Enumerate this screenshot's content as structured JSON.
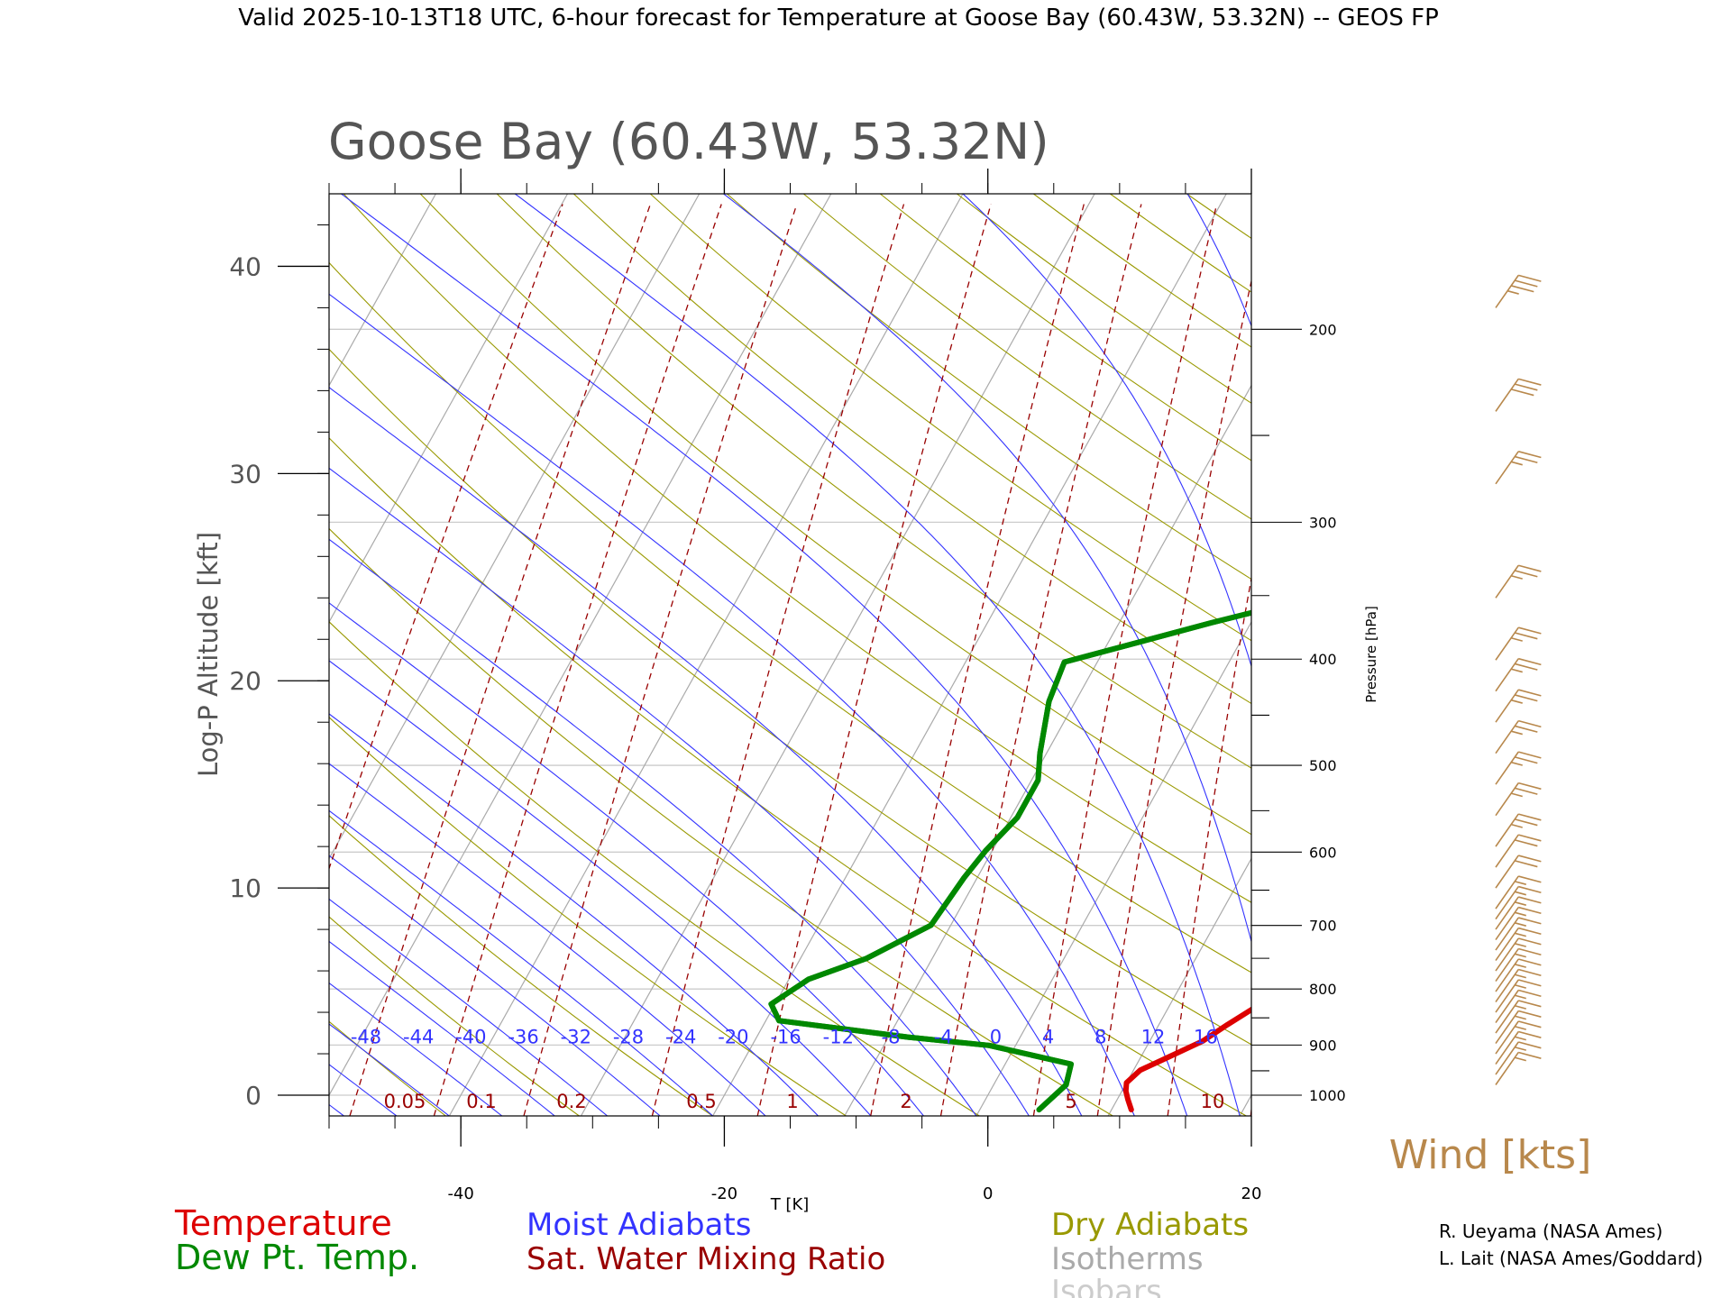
{
  "header": {
    "title": "Valid 2025-10-13T18 UTC, 6-hour forecast for Temperature at Goose Bay (60.43W, 53.32N) -- GEOS FP"
  },
  "chart_data": {
    "type": "line",
    "title": "Goose Bay (60.43W, 53.32N)",
    "xlabel": "T [K]",
    "ylabel": "Log-P Altitude [kft]",
    "y2label": "Pressure [hPa]",
    "xlim": [
      -50,
      20
    ],
    "ylim": [
      -1,
      43.5
    ],
    "x_ticks": [
      "-40",
      "-20",
      "0",
      "20"
    ],
    "y_ticks": [
      "0",
      "10",
      "20",
      "30",
      "40"
    ],
    "pressure_ticks": [
      "1000",
      "900",
      "800",
      "700",
      "600",
      "500",
      "400",
      "300",
      "200"
    ],
    "moist_adiabat_labels": [
      "-48",
      "-44",
      "-40",
      "-36",
      "-32",
      "-28",
      "-24",
      "-20",
      "-16",
      "-12",
      "-8",
      "-4",
      "0",
      "4",
      "8",
      "12",
      "16"
    ],
    "mixing_ratio_labels": [
      "0.05",
      "0.1",
      "0.2",
      "0.5",
      "1",
      "2",
      "5",
      "10"
    ],
    "series": [
      {
        "name": "Temperature",
        "color": "#dd0000",
        "points": [
          [
            11.5,
            -0.7
          ],
          [
            10.8,
            -0.2
          ],
          [
            10.3,
            0.2
          ],
          [
            10.0,
            0.6
          ],
          [
            10.5,
            1.2
          ],
          [
            12.0,
            1.8
          ],
          [
            14.0,
            2.6
          ],
          [
            15.2,
            3.4
          ],
          [
            16.5,
            4.2
          ],
          [
            17.0,
            5.0
          ],
          [
            17.5,
            6.0
          ],
          [
            17.2,
            7.0
          ],
          [
            16.0,
            8.2
          ],
          [
            15.0,
            10.0
          ],
          [
            14.3,
            11.8
          ],
          [
            13.7,
            13.5
          ],
          [
            12.5,
            15.5
          ],
          [
            11.0,
            17.6
          ],
          [
            10.0,
            19.0
          ],
          [
            9.5,
            21.0
          ],
          [
            8.5,
            23.5
          ],
          [
            7.0,
            27.0
          ],
          [
            5.0,
            28.5
          ],
          [
            0.0,
            34.0
          ],
          [
            -1.2,
            37.0
          ],
          [
            2.0,
            39.5
          ],
          [
            7.0,
            43.5
          ]
        ]
      },
      {
        "name": "Dew Pt. Temp.",
        "color": "#008800",
        "points": [
          [
            4.5,
            -0.7
          ],
          [
            5.5,
            0.5
          ],
          [
            5.0,
            1.5
          ],
          [
            -2.0,
            2.4
          ],
          [
            -8.5,
            2.8
          ],
          [
            -19.0,
            3.6
          ],
          [
            -20.3,
            4.4
          ],
          [
            -18.5,
            5.6
          ],
          [
            -15.0,
            6.6
          ],
          [
            -11.5,
            8.2
          ],
          [
            -11.0,
            10.5
          ],
          [
            -10.5,
            11.8
          ],
          [
            -9.5,
            13.4
          ],
          [
            -9.5,
            15.2
          ],
          [
            -10.5,
            16.5
          ],
          [
            -12.0,
            19.0
          ],
          [
            -12.5,
            20.9
          ],
          [
            -3.0,
            22.8
          ],
          [
            3.5,
            24.0
          ],
          [
            6.5,
            27.4
          ],
          [
            2.0,
            33.0
          ],
          [
            -1.2,
            37.0
          ],
          [
            -0.5,
            39.0
          ],
          [
            0.0,
            42.0
          ],
          [
            0.3,
            43.5
          ]
        ]
      }
    ],
    "wind_barbs_kts": [
      {
        "alt": 0.5,
        "speed": 15
      },
      {
        "alt": 1.0,
        "speed": 15
      },
      {
        "alt": 1.5,
        "speed": 15
      },
      {
        "alt": 2.0,
        "speed": 15
      },
      {
        "alt": 2.5,
        "speed": 15
      },
      {
        "alt": 3.0,
        "speed": 15
      },
      {
        "alt": 3.5,
        "speed": 15
      },
      {
        "alt": 4.0,
        "speed": 15
      },
      {
        "alt": 4.5,
        "speed": 15
      },
      {
        "alt": 5.0,
        "speed": 15
      },
      {
        "alt": 5.5,
        "speed": 15
      },
      {
        "alt": 6.0,
        "speed": 15
      },
      {
        "alt": 6.5,
        "speed": 15
      },
      {
        "alt": 7.0,
        "speed": 15
      },
      {
        "alt": 7.5,
        "speed": 15
      },
      {
        "alt": 8.0,
        "speed": 15
      },
      {
        "alt": 8.5,
        "speed": 15
      },
      {
        "alt": 9.0,
        "speed": 15
      },
      {
        "alt": 10.0,
        "speed": 20
      },
      {
        "alt": 11.0,
        "speed": 20
      },
      {
        "alt": 12.0,
        "speed": 25
      },
      {
        "alt": 13.5,
        "speed": 25
      },
      {
        "alt": 15.0,
        "speed": 25
      },
      {
        "alt": 16.5,
        "speed": 25
      },
      {
        "alt": 18.0,
        "speed": 25
      },
      {
        "alt": 19.5,
        "speed": 25
      },
      {
        "alt": 21.0,
        "speed": 25
      },
      {
        "alt": 24.0,
        "speed": 25
      },
      {
        "alt": 29.5,
        "speed": 25
      },
      {
        "alt": 33.0,
        "speed": 30
      },
      {
        "alt": 38.0,
        "speed": 35
      }
    ],
    "grid": true
  },
  "wind_label": "Wind [kts]",
  "legend": {
    "temperature": "Temperature",
    "dewpoint": "Dew Pt. Temp.",
    "moist": "Moist Adiabats",
    "mixing": "Sat. Water Mixing Ratio",
    "dry": "Dry Adiabats",
    "isotherms": "Isotherms",
    "isobars": "Isobars"
  },
  "colors": {
    "temperature": "#dd0000",
    "dewpoint": "#008800",
    "moist": "#3333ff",
    "mixing": "#990000",
    "dry": "#999900",
    "isotherm": "#aaaaaa",
    "wind": "#b8884c"
  },
  "credits": {
    "line1": "R. Ueyama (NASA Ames)",
    "line2": "L. Lait (NASA Ames/Goddard)"
  }
}
